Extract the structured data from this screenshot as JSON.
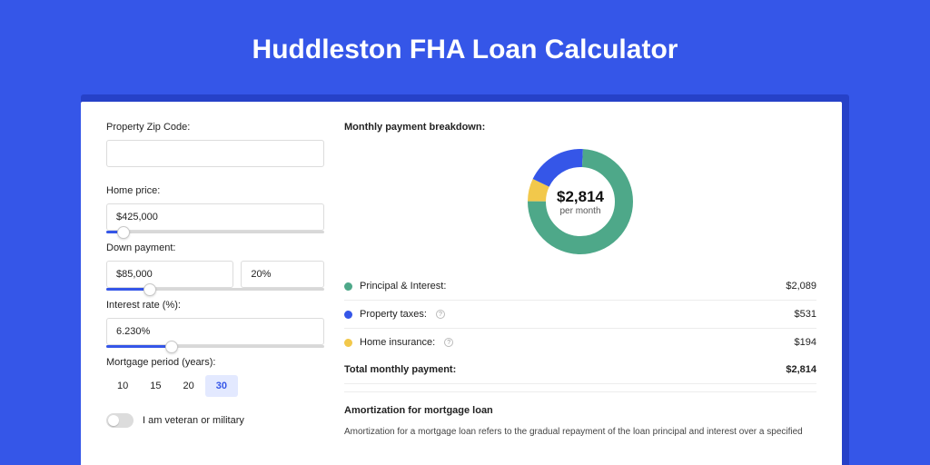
{
  "page_title": "Huddleston FHA Loan Calculator",
  "colors": {
    "page_bg": "#3556e8",
    "card_shadow": "#2641c8",
    "accent": "#3556e8",
    "pi": "#4ea889",
    "tax": "#3556e8",
    "ins": "#f2c84b"
  },
  "form": {
    "zip": {
      "label": "Property Zip Code:",
      "value": ""
    },
    "home_price": {
      "label": "Home price:",
      "value": "$425,000",
      "slider_pct": 8
    },
    "down_payment": {
      "label": "Down payment:",
      "amount": "$85,000",
      "percent": "20%",
      "slider_pct": 20
    },
    "interest": {
      "label": "Interest rate (%):",
      "value": "6.230%",
      "slider_pct": 30
    },
    "period": {
      "label": "Mortgage period (years):",
      "options": [
        "10",
        "15",
        "20",
        "30"
      ],
      "selected": "30"
    },
    "veteran": {
      "label": "I am veteran or military",
      "on": false
    }
  },
  "breakdown": {
    "heading": "Monthly payment breakdown:",
    "center_amount": "$2,814",
    "center_sub": "per month",
    "rows": [
      {
        "key": "pi",
        "label": "Principal & Interest:",
        "value": "$2,089",
        "info": false,
        "color": "#4ea889",
        "dash": 224
      },
      {
        "key": "tax",
        "label": "Property taxes:",
        "value": "$531",
        "info": true,
        "color": "#3556e8",
        "dash": 57
      },
      {
        "key": "ins",
        "label": "Home insurance:",
        "value": "$194",
        "info": true,
        "color": "#f2c84b",
        "dash": 21
      }
    ],
    "total_label": "Total monthly payment:",
    "total_value": "$2,814"
  },
  "amortization": {
    "heading": "Amortization for mortgage loan",
    "text": "Amortization for a mortgage loan refers to the gradual repayment of the loan principal and interest over a specified"
  }
}
